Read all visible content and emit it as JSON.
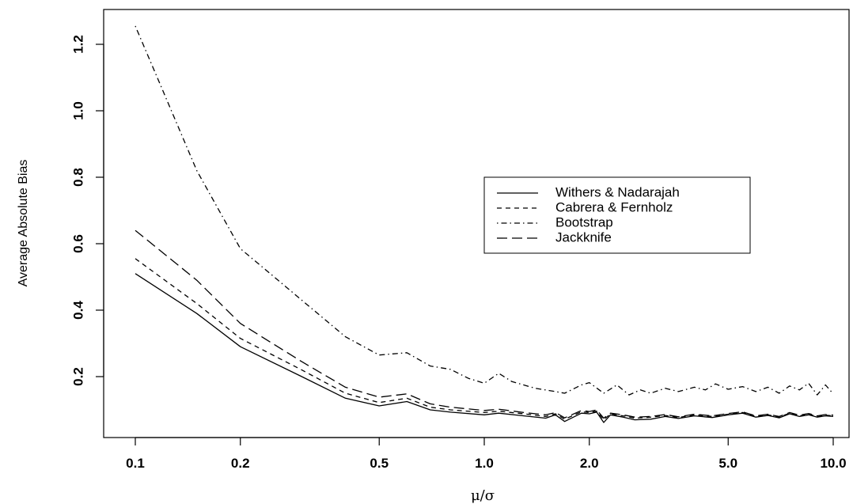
{
  "chart_data": {
    "type": "line",
    "title": "",
    "xlabel": "μ/σ",
    "ylabel": "Average Absolute Bias",
    "xscale": "log",
    "xlim": [
      0.1,
      10.0
    ],
    "ylim": [
      0.0,
      1.26
    ],
    "xticks": [
      0.1,
      0.2,
      0.5,
      1.0,
      2.0,
      5.0,
      10.0
    ],
    "xtick_labels": [
      "0.1",
      "0.2",
      "0.5",
      "1.0",
      "2.0",
      "5.0",
      "10.0"
    ],
    "yticks": [
      0.2,
      0.4,
      0.6,
      0.8,
      1.0,
      1.2
    ],
    "ytick_labels": [
      "0.2",
      "0.4",
      "0.6",
      "0.8",
      "1.0",
      "1.2"
    ],
    "grid": false,
    "legend_position": "right-center",
    "series": [
      {
        "name": "Withers & Nadarajah",
        "line_style": "solid",
        "color": "#000000",
        "points": [
          [
            0.1,
            0.51
          ],
          [
            0.15,
            0.39
          ],
          [
            0.2,
            0.29
          ],
          [
            0.3,
            0.2
          ],
          [
            0.4,
            0.135
          ],
          [
            0.5,
            0.112
          ],
          [
            0.6,
            0.125
          ],
          [
            0.7,
            0.1
          ],
          [
            0.8,
            0.093
          ],
          [
            1.0,
            0.085
          ],
          [
            1.1,
            0.09
          ],
          [
            1.3,
            0.082
          ],
          [
            1.5,
            0.075
          ],
          [
            1.6,
            0.085
          ],
          [
            1.7,
            0.065
          ],
          [
            1.9,
            0.09
          ],
          [
            2.0,
            0.088
          ],
          [
            2.1,
            0.093
          ],
          [
            2.2,
            0.062
          ],
          [
            2.3,
            0.085
          ],
          [
            2.5,
            0.078
          ],
          [
            2.7,
            0.07
          ],
          [
            3.0,
            0.072
          ],
          [
            3.3,
            0.08
          ],
          [
            3.6,
            0.074
          ],
          [
            4.0,
            0.082
          ],
          [
            4.5,
            0.077
          ],
          [
            5.0,
            0.085
          ],
          [
            5.5,
            0.09
          ],
          [
            6.0,
            0.078
          ],
          [
            6.5,
            0.083
          ],
          [
            7.0,
            0.076
          ],
          [
            7.5,
            0.088
          ],
          [
            8.0,
            0.08
          ],
          [
            8.5,
            0.085
          ],
          [
            9.0,
            0.078
          ],
          [
            9.5,
            0.082
          ],
          [
            10.0,
            0.08
          ]
        ]
      },
      {
        "name": "Cabrera & Fernholz",
        "line_style": "short-dash",
        "color": "#000000",
        "points": [
          [
            0.1,
            0.555
          ],
          [
            0.15,
            0.42
          ],
          [
            0.2,
            0.315
          ],
          [
            0.3,
            0.22
          ],
          [
            0.4,
            0.15
          ],
          [
            0.5,
            0.122
          ],
          [
            0.6,
            0.135
          ],
          [
            0.7,
            0.108
          ],
          [
            0.8,
            0.1
          ],
          [
            1.0,
            0.092
          ],
          [
            1.1,
            0.096
          ],
          [
            1.3,
            0.088
          ],
          [
            1.5,
            0.08
          ],
          [
            1.6,
            0.088
          ],
          [
            1.7,
            0.072
          ],
          [
            1.9,
            0.094
          ],
          [
            2.0,
            0.092
          ],
          [
            2.1,
            0.096
          ],
          [
            2.2,
            0.07
          ],
          [
            2.3,
            0.088
          ],
          [
            2.5,
            0.082
          ],
          [
            2.7,
            0.075
          ],
          [
            3.0,
            0.078
          ],
          [
            3.3,
            0.083
          ],
          [
            3.6,
            0.077
          ],
          [
            4.0,
            0.085
          ],
          [
            4.5,
            0.08
          ],
          [
            5.0,
            0.087
          ],
          [
            5.5,
            0.092
          ],
          [
            6.0,
            0.08
          ],
          [
            6.5,
            0.085
          ],
          [
            7.0,
            0.078
          ],
          [
            7.5,
            0.09
          ],
          [
            8.0,
            0.082
          ],
          [
            8.5,
            0.087
          ],
          [
            9.0,
            0.08
          ],
          [
            9.5,
            0.084
          ],
          [
            10.0,
            0.082
          ]
        ]
      },
      {
        "name": "Bootstrap",
        "line_style": "dot-dash",
        "color": "#000000",
        "points": [
          [
            0.1,
            1.255
          ],
          [
            0.12,
            1.06
          ],
          [
            0.15,
            0.82
          ],
          [
            0.2,
            0.585
          ],
          [
            0.25,
            0.5
          ],
          [
            0.3,
            0.43
          ],
          [
            0.4,
            0.32
          ],
          [
            0.5,
            0.265
          ],
          [
            0.6,
            0.272
          ],
          [
            0.7,
            0.232
          ],
          [
            0.8,
            0.222
          ],
          [
            0.9,
            0.195
          ],
          [
            1.0,
            0.18
          ],
          [
            1.1,
            0.21
          ],
          [
            1.2,
            0.185
          ],
          [
            1.4,
            0.165
          ],
          [
            1.6,
            0.155
          ],
          [
            1.7,
            0.15
          ],
          [
            1.9,
            0.175
          ],
          [
            2.0,
            0.182
          ],
          [
            2.2,
            0.15
          ],
          [
            2.4,
            0.175
          ],
          [
            2.6,
            0.145
          ],
          [
            2.8,
            0.16
          ],
          [
            3.0,
            0.15
          ],
          [
            3.3,
            0.165
          ],
          [
            3.6,
            0.155
          ],
          [
            4.0,
            0.168
          ],
          [
            4.3,
            0.16
          ],
          [
            4.6,
            0.178
          ],
          [
            5.0,
            0.162
          ],
          [
            5.5,
            0.17
          ],
          [
            6.0,
            0.155
          ],
          [
            6.5,
            0.168
          ],
          [
            7.0,
            0.15
          ],
          [
            7.5,
            0.172
          ],
          [
            8.0,
            0.16
          ],
          [
            8.5,
            0.18
          ],
          [
            9.0,
            0.145
          ],
          [
            9.5,
            0.175
          ],
          [
            10.0,
            0.148
          ]
        ]
      },
      {
        "name": "Jackknife",
        "line_style": "long-dash",
        "color": "#000000",
        "points": [
          [
            0.1,
            0.64
          ],
          [
            0.15,
            0.49
          ],
          [
            0.2,
            0.36
          ],
          [
            0.3,
            0.245
          ],
          [
            0.4,
            0.168
          ],
          [
            0.5,
            0.138
          ],
          [
            0.6,
            0.148
          ],
          [
            0.7,
            0.118
          ],
          [
            0.8,
            0.108
          ],
          [
            1.0,
            0.098
          ],
          [
            1.1,
            0.102
          ],
          [
            1.3,
            0.092
          ],
          [
            1.5,
            0.085
          ],
          [
            1.6,
            0.092
          ],
          [
            1.7,
            0.076
          ],
          [
            1.9,
            0.098
          ],
          [
            2.0,
            0.095
          ],
          [
            2.1,
            0.1
          ],
          [
            2.2,
            0.075
          ],
          [
            2.3,
            0.09
          ],
          [
            2.5,
            0.085
          ],
          [
            2.7,
            0.078
          ],
          [
            3.0,
            0.08
          ],
          [
            3.3,
            0.086
          ],
          [
            3.6,
            0.079
          ],
          [
            4.0,
            0.087
          ],
          [
            4.5,
            0.082
          ],
          [
            5.0,
            0.089
          ],
          [
            5.5,
            0.094
          ],
          [
            6.0,
            0.082
          ],
          [
            6.5,
            0.087
          ],
          [
            7.0,
            0.08
          ],
          [
            7.5,
            0.092
          ],
          [
            8.0,
            0.084
          ],
          [
            8.5,
            0.089
          ],
          [
            9.0,
            0.082
          ],
          [
            9.5,
            0.086
          ],
          [
            10.0,
            0.084
          ]
        ]
      }
    ]
  }
}
